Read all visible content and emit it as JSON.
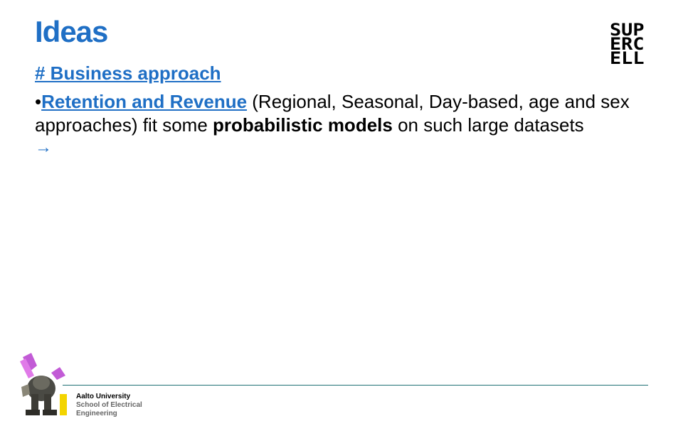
{
  "slide": {
    "title": "Ideas",
    "logo_lines": [
      "SUP",
      "ERC",
      "ELL"
    ],
    "subheading": "# Business approach",
    "bullet": "•",
    "link_text": "Retention and Revenue",
    "text_after_link": " (Regional, Seasonal, Day-based, age and sex approaches) fit some ",
    "bold_text": "probabilistic models",
    "text_end": " on such large datasets",
    "arrow": "→"
  },
  "footer": {
    "university": "Aalto University",
    "school_line1": "School of Electrical",
    "school_line2": "Engineering"
  },
  "colors": {
    "accent": "#1f6fc5",
    "footer_line": "#1e6f73"
  }
}
